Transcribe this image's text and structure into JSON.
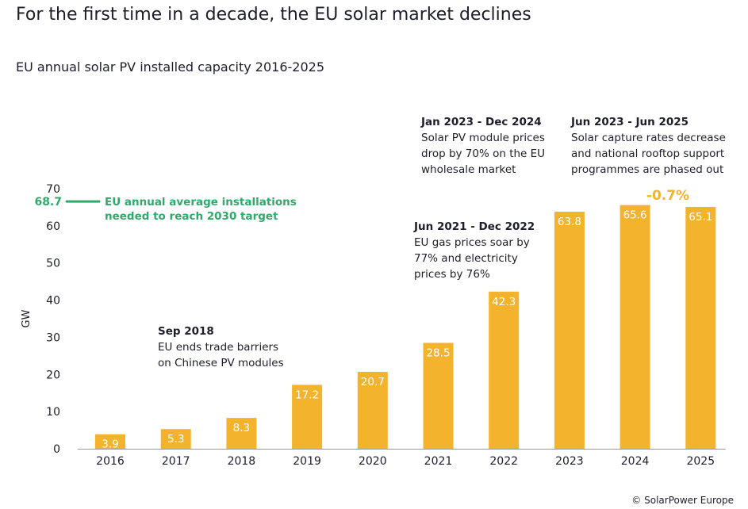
{
  "chart_data": {
    "type": "bar",
    "title": "For the first time in a decade, the EU solar market declines",
    "subtitle": "EU annual solar PV installed capacity 2016-2025",
    "ylabel": "GW",
    "xlabel": "",
    "ylim": [
      0,
      70
    ],
    "yticks": [
      0,
      10,
      20,
      30,
      40,
      50,
      60,
      70
    ],
    "categories": [
      "2016",
      "2017",
      "2018",
      "2019",
      "2020",
      "2021",
      "2022",
      "2023",
      "2024",
      "2025"
    ],
    "values": [
      3.9,
      5.3,
      8.3,
      17.2,
      20.7,
      28.5,
      42.3,
      63.8,
      65.6,
      65.1
    ],
    "target": {
      "value": 68.7,
      "label": "68.7",
      "text": [
        "EU annual average installations",
        "needed to reach 2030 target"
      ]
    },
    "change_label": "-0.7%",
    "annotations": [
      {
        "heading": "Sep 2018",
        "lines": [
          "EU ends trade barriers",
          "on Chinese PV modules"
        ]
      },
      {
        "heading": "Jun 2021 - Dec 2022",
        "lines": [
          "EU gas prices soar by",
          "77% and electricity",
          "prices by 76%"
        ]
      },
      {
        "heading": "Jan 2023 - Dec 2024",
        "lines": [
          "Solar PV module prices",
          "drop by 70% on the EU",
          "wholesale market"
        ]
      },
      {
        "heading": "Jun 2023 - Jun 2025",
        "lines": [
          "Solar capture rates decrease",
          "and national rooftop support",
          "programmes are phased out"
        ]
      }
    ],
    "colors": {
      "bar": "#F3B32C",
      "target": "#2EAA6B",
      "text": "#1d1d2b"
    }
  },
  "credit": "© SolarPower Europe"
}
